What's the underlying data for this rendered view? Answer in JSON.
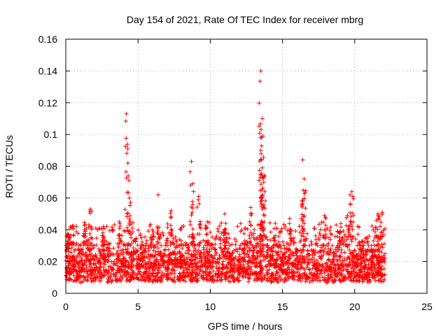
{
  "chart_data": {
    "type": "scatter",
    "title": "Day 154 of 2021, Rate Of TEC Index for receiver mbrg",
    "xlabel": "GPS time / hours",
    "ylabel": "ROTI / TECUs",
    "xlim": [
      0,
      25
    ],
    "ylim": [
      0,
      0.16
    ],
    "xticks": [
      0,
      5,
      10,
      15,
      20,
      25
    ],
    "xtick_labels": [
      "0",
      "5",
      "10",
      "15",
      "20",
      "25"
    ],
    "yticks": [
      0,
      0.02,
      0.04,
      0.06,
      0.08,
      0.1,
      0.12,
      0.14,
      0.16
    ],
    "ytick_labels": [
      "0",
      "0.02",
      "0.04",
      "0.06",
      "0.08",
      "0.1",
      "0.12",
      "0.14",
      "0.16"
    ],
    "grid": true,
    "marker": "+",
    "series": [
      {
        "name": "ROTI",
        "color": "#ff0000",
        "x_range": [
          0,
          22.1
        ],
        "typical_y_range": [
          0.004,
          0.03
        ],
        "peaks": [
          {
            "x": 0.2,
            "y": 0.037
          },
          {
            "x": 1.3,
            "y": 0.04
          },
          {
            "x": 1.7,
            "y": 0.053
          },
          {
            "x": 2.6,
            "y": 0.042
          },
          {
            "x": 3.7,
            "y": 0.045
          },
          {
            "x": 4.2,
            "y": 0.113
          },
          {
            "x": 4.3,
            "y": 0.082
          },
          {
            "x": 4.4,
            "y": 0.06
          },
          {
            "x": 6.0,
            "y": 0.04
          },
          {
            "x": 6.4,
            "y": 0.062
          },
          {
            "x": 7.3,
            "y": 0.052
          },
          {
            "x": 8.7,
            "y": 0.083
          },
          {
            "x": 8.8,
            "y": 0.069
          },
          {
            "x": 9.2,
            "y": 0.061
          },
          {
            "x": 9.8,
            "y": 0.045
          },
          {
            "x": 11.0,
            "y": 0.05
          },
          {
            "x": 12.8,
            "y": 0.054
          },
          {
            "x": 13.5,
            "y": 0.14
          },
          {
            "x": 13.6,
            "y": 0.11
          },
          {
            "x": 13.65,
            "y": 0.099
          },
          {
            "x": 13.5,
            "y": 0.09
          },
          {
            "x": 13.6,
            "y": 0.079
          },
          {
            "x": 13.7,
            "y": 0.07
          },
          {
            "x": 13.6,
            "y": 0.062
          },
          {
            "x": 14.5,
            "y": 0.044
          },
          {
            "x": 15.5,
            "y": 0.047
          },
          {
            "x": 16.4,
            "y": 0.084
          },
          {
            "x": 16.5,
            "y": 0.072
          },
          {
            "x": 16.4,
            "y": 0.058
          },
          {
            "x": 17.9,
            "y": 0.049
          },
          {
            "x": 19.0,
            "y": 0.039
          },
          {
            "x": 19.5,
            "y": 0.049
          },
          {
            "x": 19.8,
            "y": 0.064
          },
          {
            "x": 19.7,
            "y": 0.056
          },
          {
            "x": 21.6,
            "y": 0.05
          },
          {
            "x": 21.9,
            "y": 0.051
          }
        ]
      }
    ]
  }
}
